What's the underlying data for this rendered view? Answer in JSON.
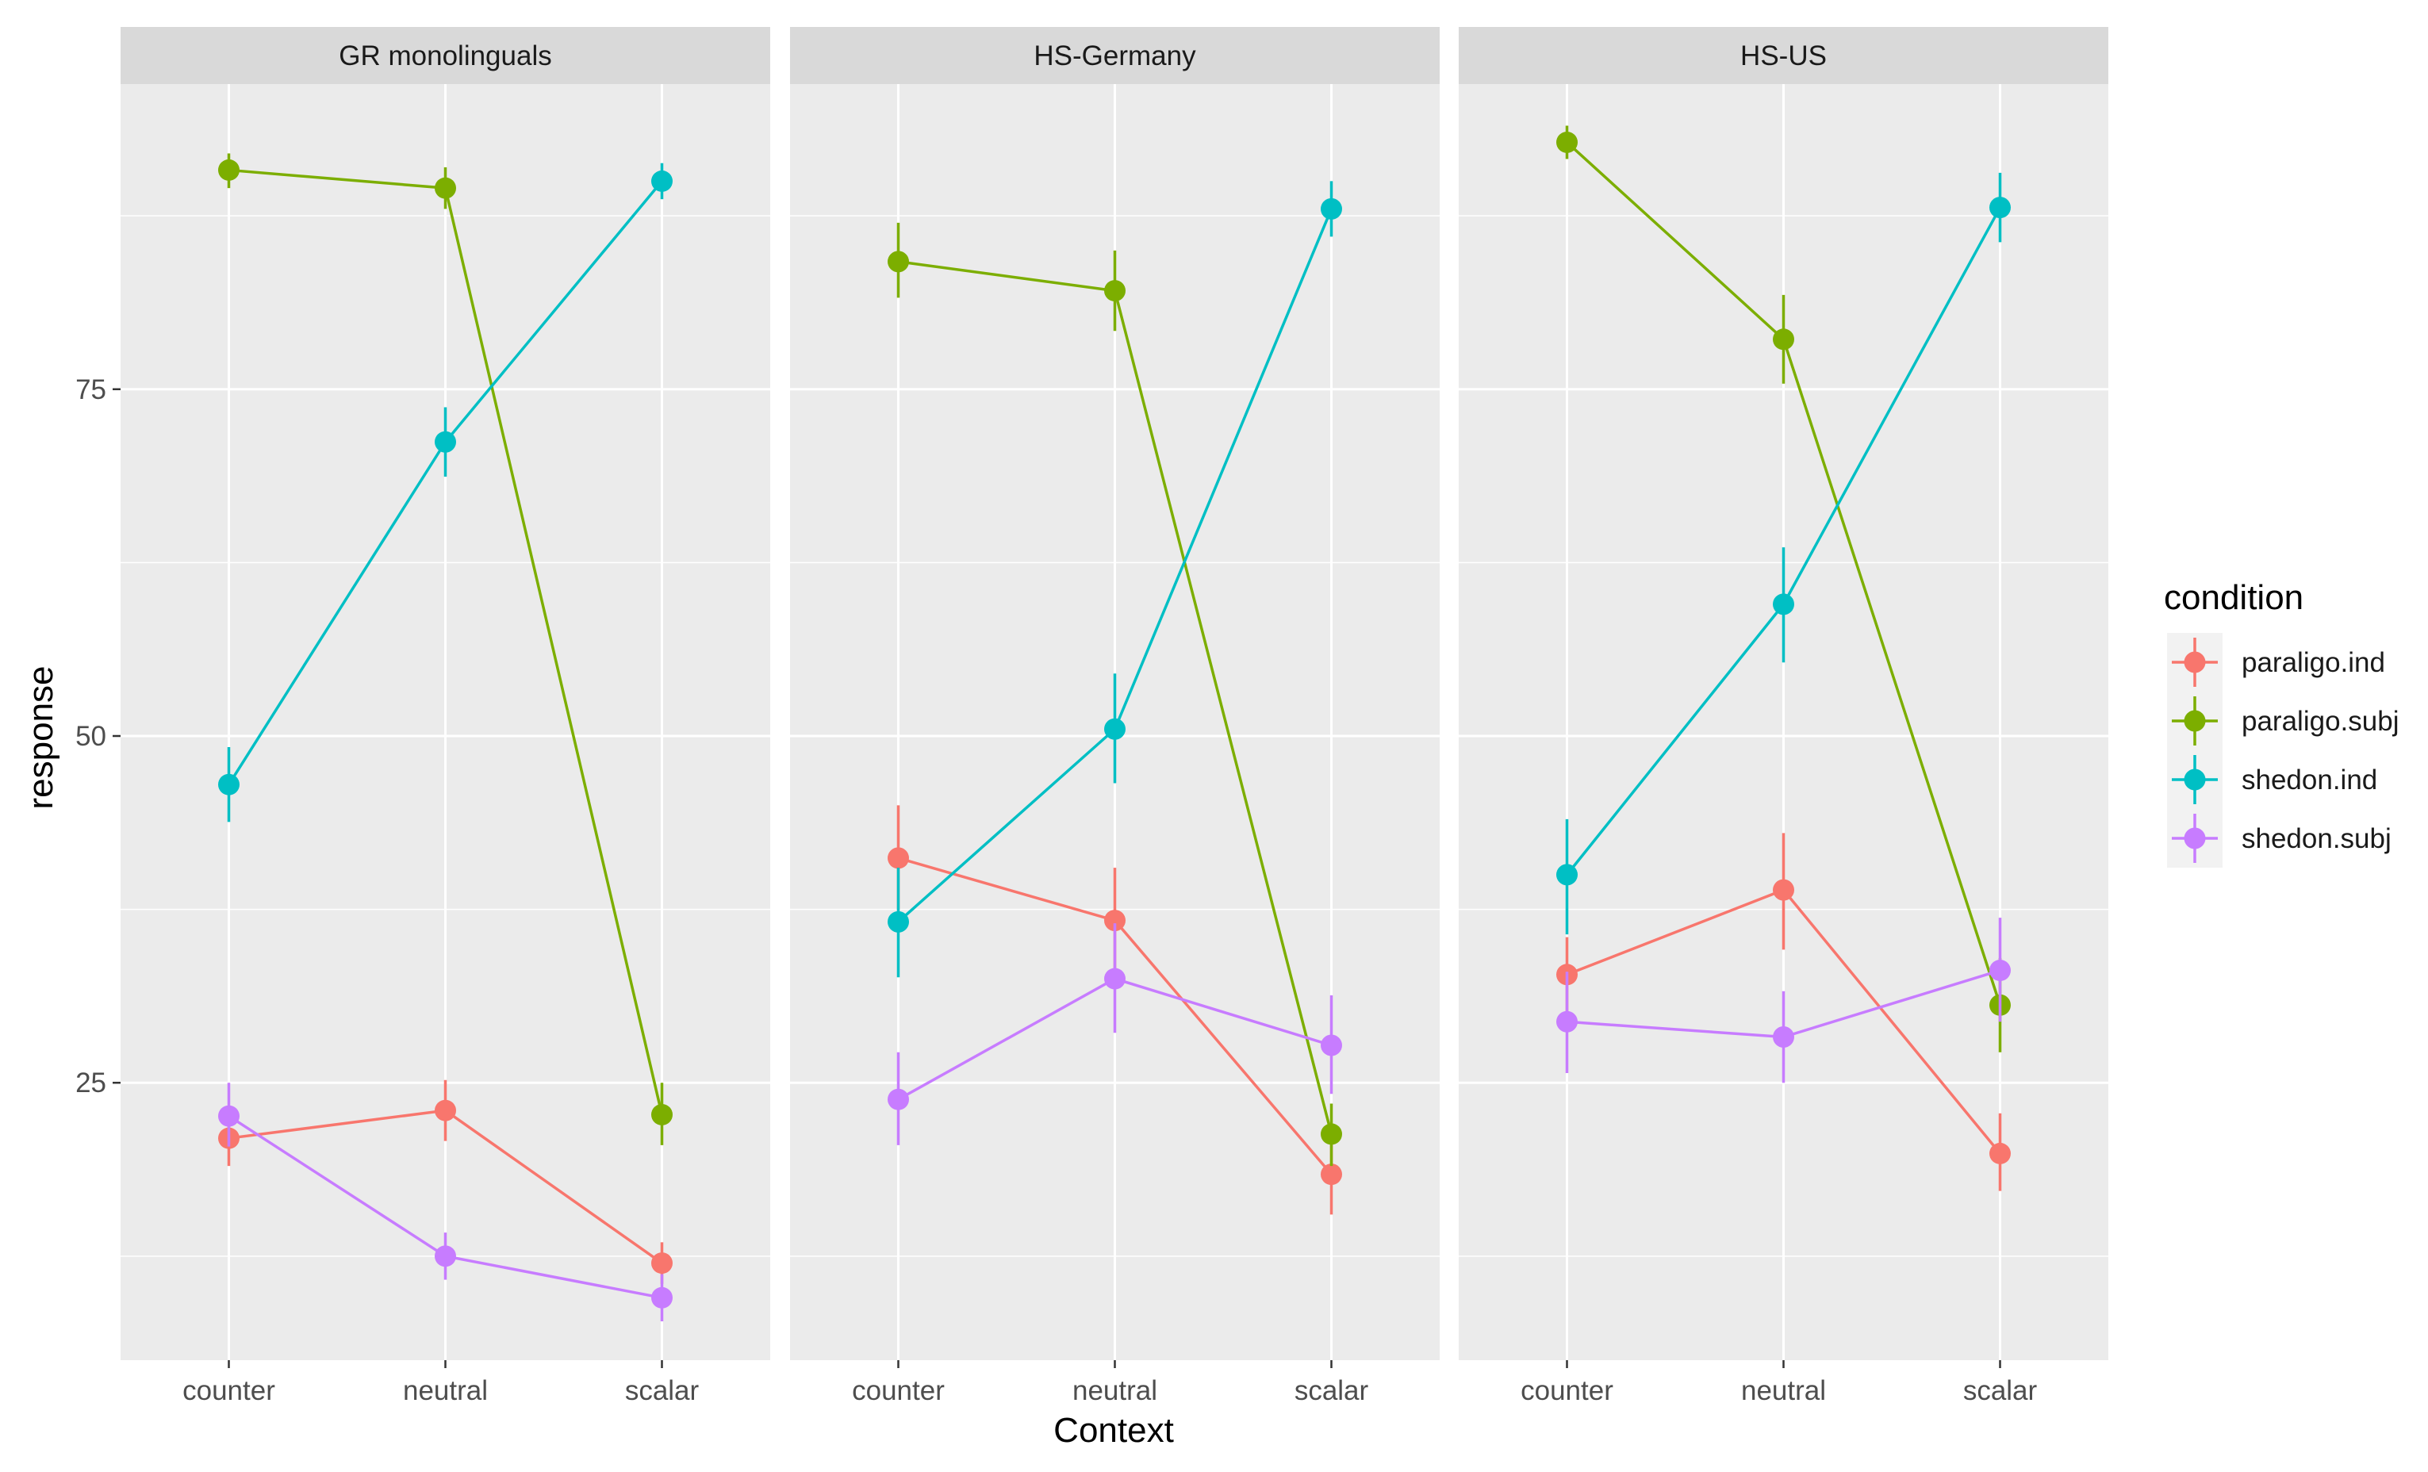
{
  "chart_data": {
    "type": "line",
    "facet_by": "group",
    "xlabel": "Context",
    "ylabel": "response",
    "categories": [
      "counter",
      "neutral",
      "scalar"
    ],
    "ylim": [
      5,
      97
    ],
    "yticks": [
      25,
      50,
      75
    ],
    "grid": true,
    "legend": {
      "title": "condition",
      "placement": "right",
      "entries": [
        "paraligo.ind",
        "paraligo.subj",
        "shedon.ind",
        "shedon.subj"
      ]
    },
    "colors": {
      "paraligo.ind": "#F8766D",
      "paraligo.subj": "#7CAE00",
      "shedon.ind": "#00BFC4",
      "shedon.subj": "#C77CFF"
    },
    "panels": [
      {
        "title": "GR monolinguals",
        "series": [
          {
            "name": "paraligo.ind",
            "values": [
              21.0,
              23.0,
              12.0
            ],
            "lower": [
              19.0,
              20.8,
              10.5
            ],
            "upper": [
              23.0,
              25.2,
              13.5
            ]
          },
          {
            "name": "paraligo.subj",
            "values": [
              90.8,
              89.5,
              22.7
            ],
            "lower": [
              89.5,
              88.0,
              20.5
            ],
            "upper": [
              92.0,
              91.0,
              25.0
            ]
          },
          {
            "name": "shedon.ind",
            "values": [
              46.5,
              71.2,
              90.0
            ],
            "lower": [
              43.8,
              68.7,
              88.7
            ],
            "upper": [
              49.2,
              73.7,
              91.3
            ]
          },
          {
            "name": "shedon.subj",
            "values": [
              22.6,
              12.5,
              9.5
            ],
            "lower": [
              20.4,
              10.8,
              7.8
            ],
            "upper": [
              25.0,
              14.2,
              11.2
            ]
          }
        ]
      },
      {
        "title": "HS-Germany",
        "series": [
          {
            "name": "paraligo.ind",
            "values": [
              41.2,
              36.7,
              18.4
            ],
            "lower": [
              37.5,
              33.0,
              15.5
            ],
            "upper": [
              45.0,
              40.5,
              21.5
            ]
          },
          {
            "name": "paraligo.subj",
            "values": [
              84.2,
              82.1,
              21.3
            ],
            "lower": [
              81.6,
              79.2,
              19.0
            ],
            "upper": [
              87.0,
              85.0,
              23.5
            ]
          },
          {
            "name": "shedon.ind",
            "values": [
              36.6,
              50.5,
              88.0
            ],
            "lower": [
              32.6,
              46.6,
              86.0
            ],
            "upper": [
              40.5,
              54.5,
              90.0
            ]
          },
          {
            "name": "shedon.subj",
            "values": [
              23.8,
              32.5,
              27.7
            ],
            "lower": [
              20.5,
              28.6,
              24.2
            ],
            "upper": [
              27.2,
              36.5,
              31.3
            ]
          }
        ]
      },
      {
        "title": "HS-US",
        "series": [
          {
            "name": "paraligo.ind",
            "values": [
              32.8,
              38.9,
              19.9
            ],
            "lower": [
              30.0,
              34.6,
              17.2
            ],
            "upper": [
              35.5,
              43.0,
              22.8
            ]
          },
          {
            "name": "paraligo.subj",
            "values": [
              92.8,
              78.6,
              30.6
            ],
            "lower": [
              91.6,
              75.4,
              27.2
            ],
            "upper": [
              94.0,
              81.8,
              34.0
            ]
          },
          {
            "name": "shedon.ind",
            "values": [
              40.0,
              59.5,
              88.1
            ],
            "lower": [
              35.7,
              55.3,
              85.6
            ],
            "upper": [
              44.0,
              63.6,
              90.6
            ]
          },
          {
            "name": "shedon.subj",
            "values": [
              29.4,
              28.3,
              33.1
            ],
            "lower": [
              25.7,
              25.0,
              29.4
            ],
            "upper": [
              33.0,
              31.6,
              36.9
            ]
          }
        ]
      }
    ]
  }
}
